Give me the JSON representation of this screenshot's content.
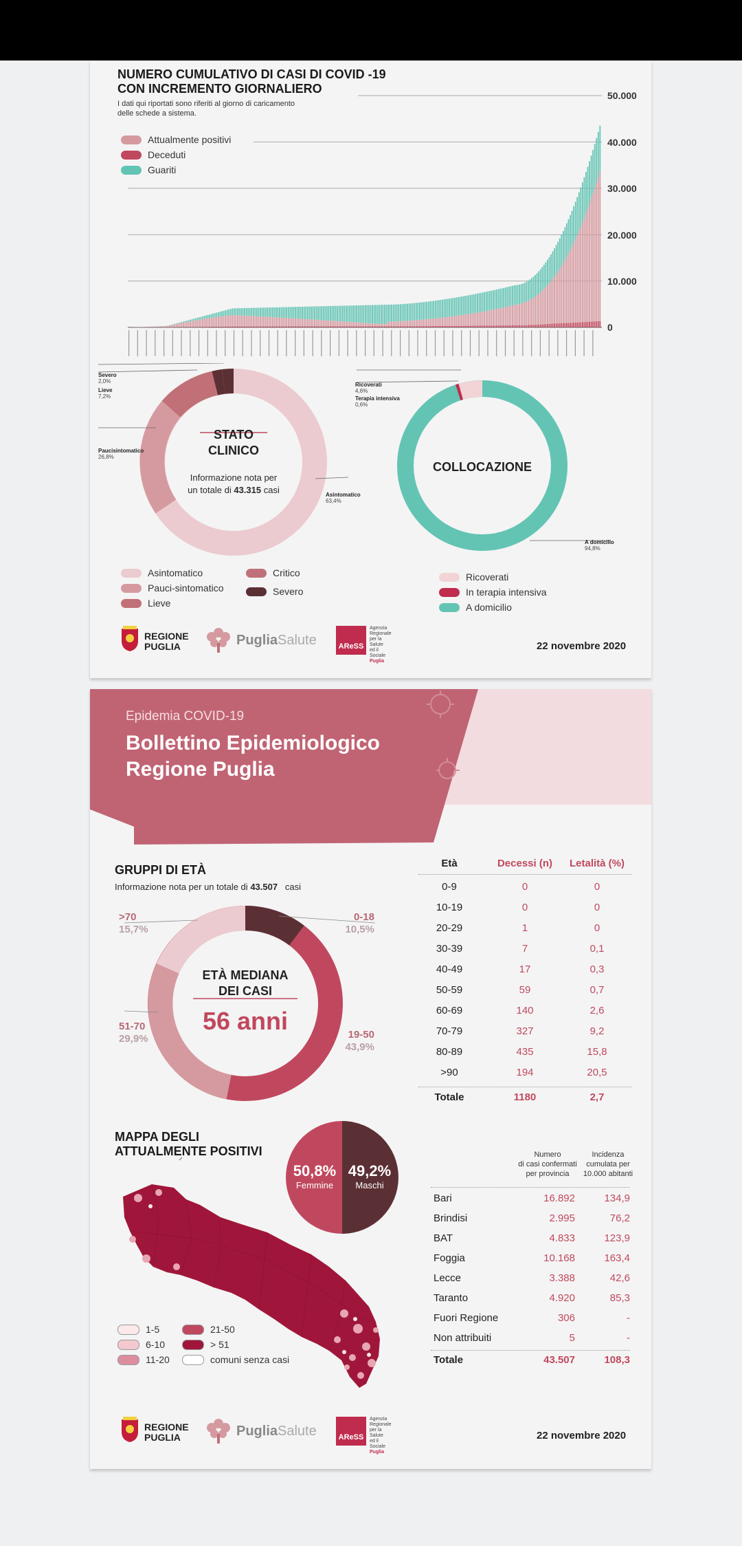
{
  "page1": {
    "chart_title_line1": "NUMERO CUMULATIVO DI CASI DI COVID -19",
    "chart_title_line2": "CON INCREMENTO GIORNALIERO",
    "chart_note_line1": "I dati qui riportati sono riferiti al giorno di caricamento",
    "chart_note_line2": "delle schede a sistema.",
    "legend": [
      "Attualmente positivi",
      "Deceduti",
      "Guariti"
    ],
    "yticks": [
      "50.000",
      "40.000",
      "30.000",
      "20.000",
      "10.000",
      "0"
    ],
    "colors": {
      "positivi": "#d59aa0",
      "deceduti": "#c0485e",
      "guariti": "#63c4b4",
      "asintomatico": "#ebcbcf",
      "pauci": "#d59aa0",
      "lieve": "#c07076",
      "critico": "#c0707b",
      "severo": "#5b3035",
      "ricoverati": "#f2d4d6",
      "intensiva": "#c02c4e",
      "domicilio": "#63c4b4"
    },
    "stato": {
      "title_line1": "STATO",
      "title_line2": "CLINICO",
      "info_line1": "Informazione nota per",
      "info_line2_prefix": "un totale di",
      "info_total": "43.315",
      "info_suffix": "casi",
      "annotations": [
        {
          "label": "Severo",
          "value": "2,0%"
        },
        {
          "label": "Lieve",
          "value": "7,2%"
        },
        {
          "label": "Paucisintomatico",
          "value": "26,8%"
        },
        {
          "label": "Asintomatico",
          "value": "63,4%"
        }
      ],
      "legend": [
        "Asintomatico",
        "Pauci-sintomatico",
        "Lieve",
        "Critico",
        "Severo"
      ]
    },
    "collocazione": {
      "title": "COLLOCAZIONE",
      "annotations": [
        {
          "label": "Ricoverati",
          "value": "4,6%"
        },
        {
          "label": "Terapia intensiva",
          "value": "0,6%"
        },
        {
          "label": "A domicilio",
          "value": "94,8%"
        }
      ],
      "legend": [
        "Ricoverati",
        "In terapia intensiva",
        "A domicilio"
      ]
    },
    "date": "22 novembre 2020"
  },
  "footer": {
    "regione_line1": "REGIONE",
    "regione_line2": "PUGLIA",
    "puglia": "Puglia",
    "salute": "Salute",
    "aress": "AReSS",
    "aress_desc": [
      "Agenzia",
      "Regionale",
      "per la Salute",
      "ed il Sociale",
      "Puglia"
    ]
  },
  "page2": {
    "banner_sub": "Epidemia COVID-19",
    "banner_title_line1": "Bollettino Epidemiologico",
    "banner_title_line2": "Regione Puglia",
    "eta_title": "GRUPPI DI ETÀ",
    "eta_info_prefix": "Informazione nota per un totale di",
    "eta_info_total": "43.507",
    "eta_info_suffix": "casi",
    "eta_center_line1": "ETÀ MEDIANA",
    "eta_center_line2": "DEI CASI",
    "eta_median": "56 anni",
    "eta_labels": [
      {
        "range": ">70",
        "pct": "15,7%"
      },
      {
        "range": "0-18",
        "pct": "10,5%"
      },
      {
        "range": "51-70",
        "pct": "29,9%"
      },
      {
        "range": "19-50",
        "pct": "43,9%"
      }
    ],
    "age_table": {
      "headers": [
        "Età",
        "Decessi (n)",
        "Letalità (%)"
      ],
      "rows": [
        [
          "0-9",
          "0",
          "0"
        ],
        [
          "10-19",
          "0",
          "0"
        ],
        [
          "20-29",
          "1",
          "0"
        ],
        [
          "30-39",
          "7",
          "0,1"
        ],
        [
          "40-49",
          "17",
          "0,3"
        ],
        [
          "50-59",
          "59",
          "0,7"
        ],
        [
          "60-69",
          "140",
          "2,6"
        ],
        [
          "70-79",
          "327",
          "9,2"
        ],
        [
          "80-89",
          "435",
          "15,8"
        ],
        [
          ">90",
          "194",
          "20,5"
        ]
      ],
      "total": [
        "Totale",
        "1180",
        "2,7"
      ]
    },
    "mappa_title_line1": "MAPPA DEGLI",
    "mappa_title_line2": "ATTUALMENTE POSITIVI",
    "sex": {
      "femmine_pct": "50,8%",
      "femmine": "Femmine",
      "maschi_pct": "49,2%",
      "maschi": "Maschi"
    },
    "map_legend": [
      "1-5",
      "6-10",
      "11-20",
      "21-50",
      "> 51",
      "comuni senza casi"
    ],
    "prov_table": {
      "head_col2": [
        "Numero",
        "di casi confermati",
        "per provincia"
      ],
      "head_col3": [
        "Incidenza",
        "cumulata per",
        "10.000 abitanti"
      ],
      "rows": [
        [
          "Bari",
          "16.892",
          "134,9"
        ],
        [
          "Brindisi",
          "2.995",
          "76,2"
        ],
        [
          "BAT",
          "4.833",
          "123,9"
        ],
        [
          "Foggia",
          "10.168",
          "163,4"
        ],
        [
          "Lecce",
          "3.388",
          "42,6"
        ],
        [
          "Taranto",
          "4.920",
          "85,3"
        ],
        [
          "Fuori Regione",
          "306",
          "-"
        ],
        [
          "Non attribuiti",
          "5",
          "-"
        ]
      ],
      "total": [
        "Totale",
        "43.507",
        "108,3"
      ]
    },
    "date": "22 novembre 2020"
  }
}
